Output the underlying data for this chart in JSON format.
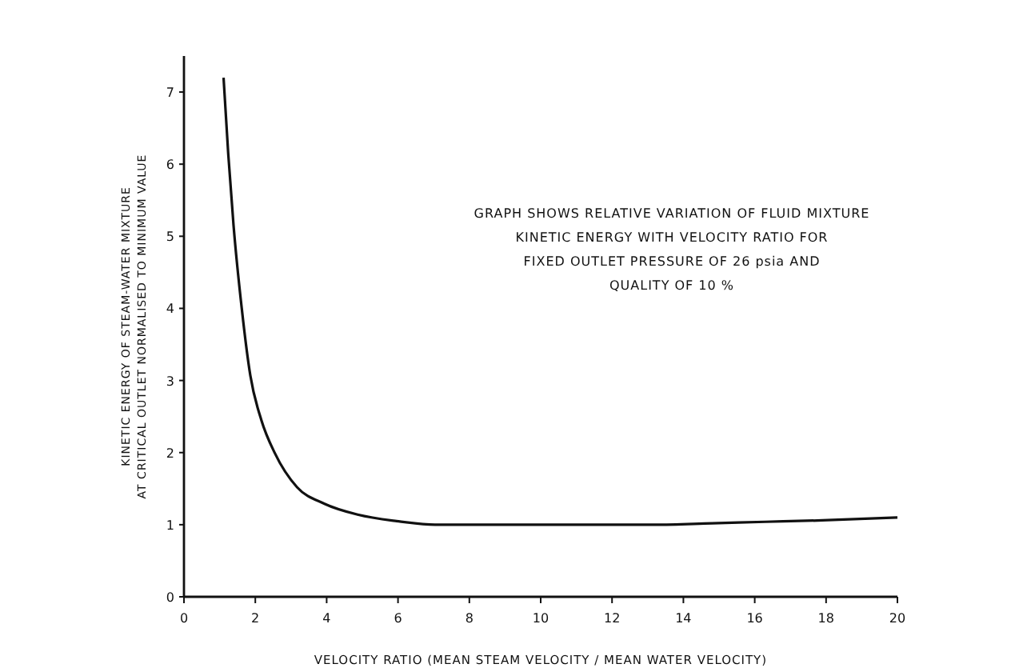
{
  "chart_data": {
    "type": "line",
    "xlabel": "VELOCITY RATIO (MEAN STEAM VELOCITY / MEAN WATER VELOCITY)",
    "ylabel": "KINETIC ENERGY OF STEAM-WATER MIXTURE\nAT CRITICAL OUTLET NORMALISED TO MINIMUM VALUE",
    "annotations": [
      "GRAPH SHOWS RELATIVE VARIATION OF FLUID MIXTURE\nKINETIC ENERGY WITH VELOCITY RATIO FOR\nFIXED OUTLET PRESSURE OF 26 psia AND\nQUALITY OF 10 %"
    ],
    "x": [
      1.11,
      1.24,
      1.39,
      1.62,
      1.86,
      2.17,
      2.55,
      3.17,
      3.94,
      4.87,
      5.96,
      7.04,
      8.6,
      10.1,
      11.7,
      13.2,
      14.8,
      16.3,
      17.9,
      20
    ],
    "series": [
      {
        "color": "#111111",
        "values": [
          7.2,
          6.15,
          5.15,
          4.0,
          3.07,
          2.45,
          1.99,
          1.52,
          1.29,
          1.14,
          1.05,
          1.0,
          1.0,
          1.0,
          1.0,
          1.0,
          1.02,
          1.04,
          1.06,
          1.1
        ]
      }
    ],
    "xlim": [
      0,
      20
    ],
    "ylim": [
      0,
      7.5
    ],
    "xticks": [
      0,
      2,
      4,
      6,
      8,
      10,
      12,
      14,
      16,
      18,
      20
    ],
    "yticks": [
      0,
      1,
      2,
      3,
      4,
      5,
      6,
      7
    ],
    "grid": false,
    "marker": "none",
    "line_style": "solid"
  }
}
